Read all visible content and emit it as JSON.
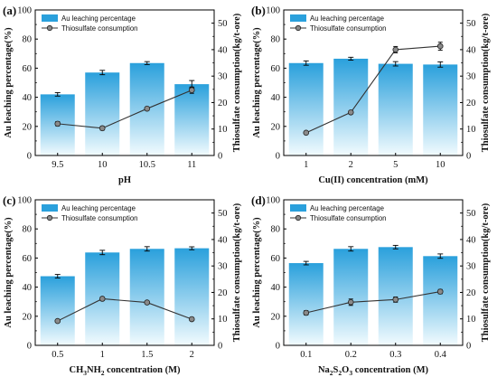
{
  "colors": {
    "bar_top": "#2aa0dc",
    "bar_bottom": "#f2fbfe",
    "line": "#333333",
    "marker": "#8a8a8a",
    "axis": "#000000"
  },
  "chart_data": [
    {
      "panel": "(a)",
      "type": "bar",
      "categories": [
        "9.5",
        "10",
        "10.5",
        "11"
      ],
      "xlabel": "pH",
      "ylabel": "Au leaching percentage(%)",
      "y2label": "Thiosulfate consumption(kg/t-ore)",
      "ylim": [
        0,
        100
      ],
      "y2lim": [
        0,
        55
      ],
      "yticks": [
        "0",
        "20",
        "40",
        "60",
        "80",
        "100"
      ],
      "y2ticks": [
        "0",
        "10",
        "20",
        "30",
        "40",
        "50"
      ],
      "legend_position": "top-left",
      "series": [
        {
          "name": "Au leaching percentage",
          "axis": "left",
          "type": "bar",
          "values": [
            42,
            57,
            63.5,
            49
          ],
          "errors": [
            1.2,
            1.5,
            1.0,
            2.5
          ]
        },
        {
          "name": "Thiosulfate consumption",
          "axis": "right",
          "type": "line",
          "values": [
            12.0,
            10.3,
            17.7,
            24.7
          ],
          "errors": [
            0.8,
            0.7,
            0.6,
            1.2
          ]
        }
      ]
    },
    {
      "panel": "(b)",
      "type": "bar",
      "categories": [
        "1",
        "2",
        "5",
        "10"
      ],
      "xlabel": "Cu(II) concentration (mM)",
      "ylabel": "Au leaching percentage(%)",
      "y2label": "Thiosulfate consumption(kg/t-ore)",
      "ylim": [
        0,
        100
      ],
      "y2lim": [
        0,
        55
      ],
      "yticks": [
        "0",
        "20",
        "40",
        "60",
        "80",
        "100"
      ],
      "y2ticks": [
        "0",
        "10",
        "20",
        "30",
        "40",
        "50"
      ],
      "legend_position": "top-left",
      "series": [
        {
          "name": "Au leaching percentage",
          "axis": "left",
          "type": "bar",
          "values": [
            63.5,
            66.5,
            63,
            62.5
          ],
          "errors": [
            1.5,
            1.0,
            1.5,
            1.8
          ]
        },
        {
          "name": "Thiosulfate consumption",
          "axis": "right",
          "type": "line",
          "values": [
            8.6,
            16.3,
            40.0,
            41.3
          ],
          "errors": [
            0.4,
            0.6,
            1.2,
            1.5
          ]
        }
      ]
    },
    {
      "panel": "(c)",
      "type": "bar",
      "categories": [
        "0.5",
        "1",
        "1.5",
        "2"
      ],
      "xlabel_parts": [
        "CH",
        "3",
        "NH",
        "2",
        " concentration (M)"
      ],
      "ylabel": "Au leaching percentage(%)",
      "y2label": "Thiosulfate consumption(kg/t-ore)",
      "ylim": [
        0,
        100
      ],
      "y2lim": [
        0,
        55
      ],
      "yticks": [
        "0",
        "20",
        "40",
        "60",
        "80",
        "100"
      ],
      "y2ticks": [
        "0",
        "10",
        "20",
        "30",
        "40",
        "50"
      ],
      "legend_position": "top-left",
      "series": [
        {
          "name": "Au leaching percentage",
          "axis": "left",
          "type": "bar",
          "values": [
            47.5,
            63.8,
            66.3,
            66.7
          ],
          "errors": [
            1.2,
            1.5,
            1.5,
            1.0
          ]
        },
        {
          "name": "Thiosulfate consumption",
          "axis": "right",
          "type": "line",
          "values": [
            9.2,
            17.6,
            16.2,
            9.9
          ],
          "errors": [
            0.4,
            0.6,
            0.5,
            0.4
          ]
        }
      ]
    },
    {
      "panel": "(d)",
      "type": "bar",
      "categories": [
        "0.1",
        "0.2",
        "0.3",
        "0.4"
      ],
      "xlabel_parts": [
        "Na",
        "2",
        "S",
        "2",
        "O",
        "3",
        " concentration (M)"
      ],
      "ylabel": "Au leaching percentage(%)",
      "y2label": "Thiosulfate consumption(kg/t-ore)",
      "ylim": [
        0,
        100
      ],
      "y2lim": [
        0,
        55
      ],
      "yticks": [
        "0",
        "20",
        "40",
        "60",
        "80",
        "100"
      ],
      "y2ticks": [
        "0",
        "10",
        "20",
        "30",
        "40",
        "50"
      ],
      "legend_position": "top-left",
      "series": [
        {
          "name": "Au leaching percentage",
          "axis": "left",
          "type": "bar",
          "values": [
            56.5,
            66.3,
            67.5,
            61.3
          ],
          "errors": [
            1.2,
            1.5,
            1.2,
            1.5
          ]
        },
        {
          "name": "Thiosulfate consumption",
          "axis": "right",
          "type": "line",
          "values": [
            12.3,
            16.3,
            17.3,
            20.3
          ],
          "errors": [
            0.8,
            1.2,
            1.0,
            0.8
          ]
        }
      ]
    }
  ]
}
